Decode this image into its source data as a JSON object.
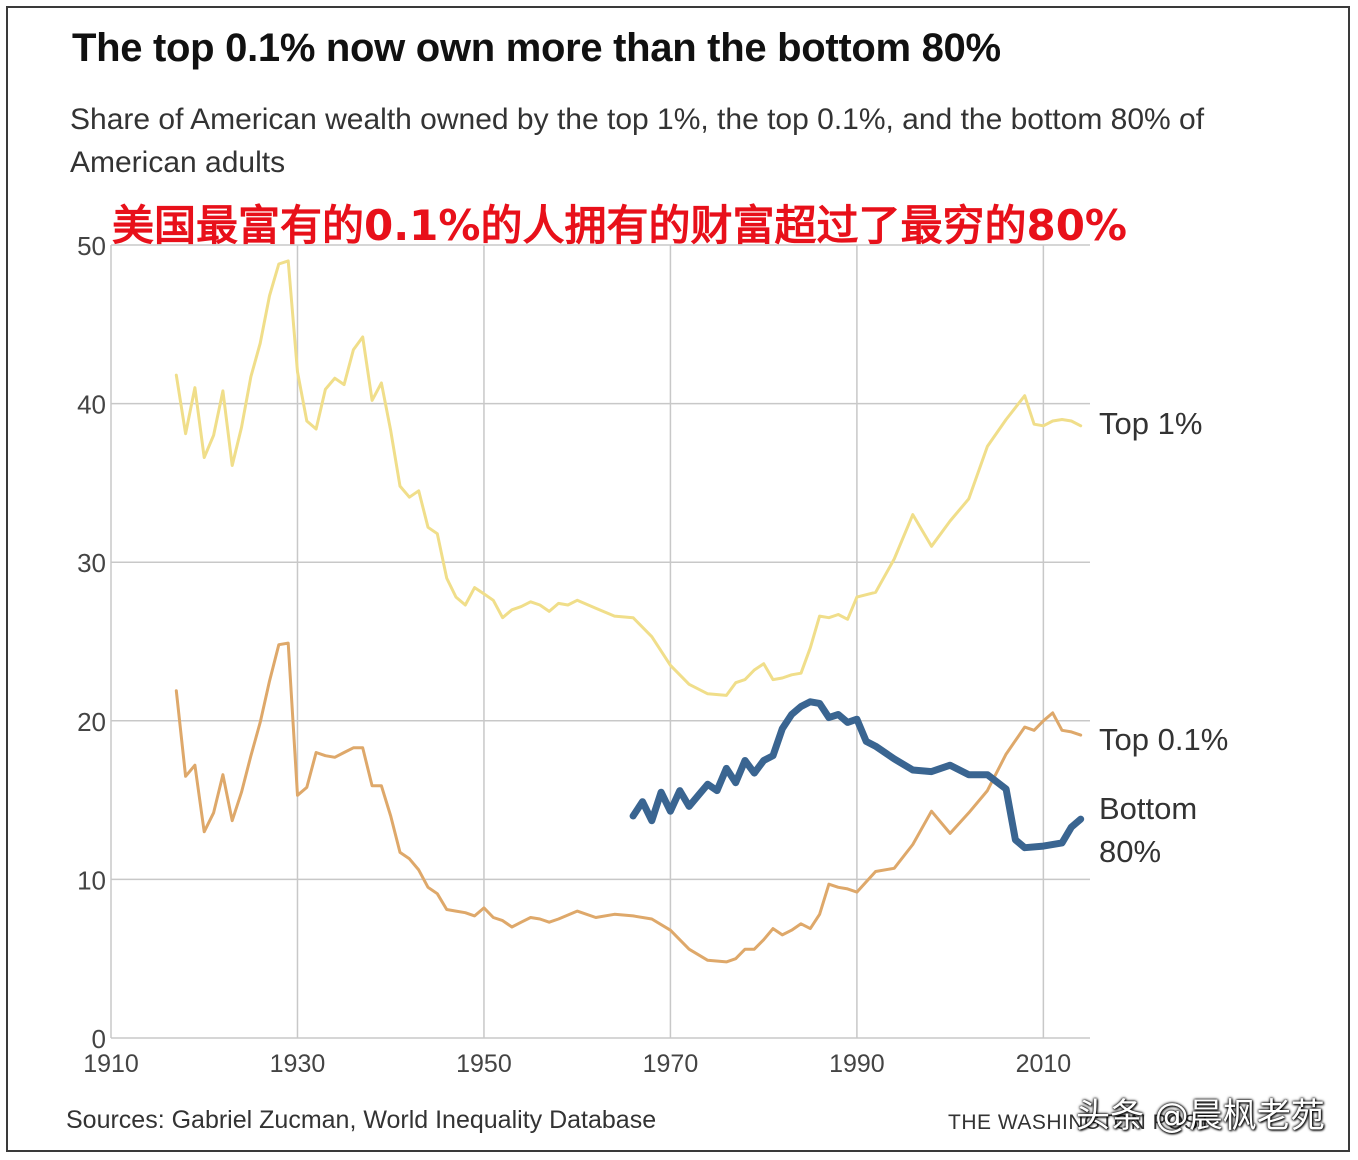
{
  "header": {
    "title": "The top 0.1% now own more than the bottom 80%",
    "subtitle": "Share of American wealth owned by the top 1%, the top 0.1%, and the bottom 80% of American adults",
    "cn_title": "美国最富有的0.1%的人拥有的财富超过了最穷的80%"
  },
  "footer": {
    "sources": "Sources: Gabriel Zucman, World Inequality Database",
    "credit": "THE WASHINGTON POST",
    "watermark": "头条 @晨枫老苑"
  },
  "colors": {
    "top1": "#f0de8a",
    "top01": "#dea86a",
    "bottom80": "#3a6591",
    "grid": "#c8c8c8",
    "axis_text": "#444444"
  },
  "chart_data": {
    "type": "line",
    "title": "The top 0.1% now own more than the bottom 80%",
    "xlabel": "",
    "ylabel": "",
    "xlim": [
      1910,
      2015
    ],
    "ylim": [
      0,
      50
    ],
    "x_ticks": [
      1910,
      1930,
      1950,
      1970,
      1990,
      2010
    ],
    "y_ticks": [
      0,
      10,
      20,
      30,
      40,
      50
    ],
    "grid": true,
    "series": [
      {
        "name": "Top 1%",
        "label": "Top 1%",
        "color_key": "top1",
        "x": [
          1917,
          1918,
          1919,
          1920,
          1921,
          1922,
          1923,
          1924,
          1925,
          1926,
          1927,
          1928,
          1929,
          1930,
          1931,
          1932,
          1933,
          1934,
          1935,
          1936,
          1937,
          1938,
          1939,
          1940,
          1941,
          1942,
          1943,
          1944,
          1945,
          1946,
          1947,
          1948,
          1949,
          1950,
          1951,
          1952,
          1953,
          1954,
          1955,
          1956,
          1957,
          1958,
          1959,
          1960,
          1962,
          1964,
          1966,
          1968,
          1970,
          1972,
          1974,
          1976,
          1977,
          1978,
          1979,
          1980,
          1981,
          1982,
          1983,
          1984,
          1985,
          1986,
          1987,
          1988,
          1989,
          1990,
          1992,
          1994,
          1996,
          1998,
          2000,
          2002,
          2004,
          2006,
          2008,
          2009,
          2010,
          2011,
          2012,
          2013,
          2014
        ],
        "values": [
          41.8,
          38.1,
          41.0,
          36.6,
          38.0,
          40.8,
          36.1,
          38.5,
          41.7,
          43.8,
          46.8,
          48.8,
          49.0,
          42.0,
          38.9,
          38.4,
          40.9,
          41.6,
          41.2,
          43.4,
          44.2,
          40.2,
          41.3,
          38.3,
          34.8,
          34.1,
          34.5,
          32.2,
          31.8,
          29.0,
          27.8,
          27.3,
          28.4,
          28.0,
          27.6,
          26.5,
          27.0,
          27.2,
          27.5,
          27.3,
          26.9,
          27.4,
          27.3,
          27.6,
          27.1,
          26.6,
          26.5,
          25.3,
          23.5,
          22.3,
          21.7,
          21.6,
          22.4,
          22.6,
          23.2,
          23.6,
          22.6,
          22.7,
          22.9,
          23.0,
          24.6,
          26.6,
          26.5,
          26.7,
          26.4,
          27.8,
          28.1,
          30.2,
          33.0,
          31.0,
          32.6,
          34.0,
          37.3,
          39.0,
          40.5,
          38.7,
          38.6,
          38.9,
          39.0,
          38.9,
          38.6
        ]
      },
      {
        "name": "Top 0.1%",
        "label": "Top 0.1%",
        "color_key": "top01",
        "x": [
          1917,
          1918,
          1919,
          1920,
          1921,
          1922,
          1923,
          1924,
          1925,
          1926,
          1927,
          1928,
          1929,
          1930,
          1931,
          1932,
          1933,
          1934,
          1935,
          1936,
          1937,
          1938,
          1939,
          1940,
          1941,
          1942,
          1943,
          1944,
          1945,
          1946,
          1947,
          1948,
          1949,
          1950,
          1951,
          1952,
          1953,
          1954,
          1955,
          1956,
          1957,
          1958,
          1960,
          1962,
          1964,
          1966,
          1968,
          1970,
          1972,
          1974,
          1976,
          1977,
          1978,
          1979,
          1980,
          1981,
          1982,
          1983,
          1984,
          1985,
          1986,
          1987,
          1988,
          1989,
          1990,
          1992,
          1994,
          1996,
          1998,
          2000,
          2002,
          2004,
          2006,
          2008,
          2009,
          2010,
          2011,
          2012,
          2013,
          2014
        ],
        "values": [
          21.9,
          16.5,
          17.2,
          13.0,
          14.2,
          16.6,
          13.7,
          15.5,
          17.8,
          19.9,
          22.5,
          24.8,
          24.9,
          15.3,
          15.8,
          18.0,
          17.8,
          17.7,
          18.0,
          18.3,
          18.3,
          15.9,
          15.9,
          14.0,
          11.7,
          11.3,
          10.6,
          9.5,
          9.1,
          8.1,
          8.0,
          7.9,
          7.7,
          8.2,
          7.6,
          7.4,
          7.0,
          7.3,
          7.6,
          7.5,
          7.3,
          7.5,
          8.0,
          7.6,
          7.8,
          7.7,
          7.5,
          6.8,
          5.6,
          4.9,
          4.8,
          5.0,
          5.6,
          5.6,
          6.2,
          6.9,
          6.5,
          6.8,
          7.2,
          6.9,
          7.8,
          9.7,
          9.5,
          9.4,
          9.2,
          10.5,
          10.7,
          12.2,
          14.3,
          12.9,
          14.2,
          15.6,
          17.9,
          19.6,
          19.4,
          20.0,
          20.5,
          19.4,
          19.3,
          19.1
        ]
      },
      {
        "name": "Bottom 80%",
        "label_line1": "Bottom",
        "label_line2": "80%",
        "color_key": "bottom80",
        "x": [
          1966,
          1967,
          1968,
          1969,
          1970,
          1971,
          1972,
          1973,
          1974,
          1975,
          1976,
          1977,
          1978,
          1979,
          1980,
          1981,
          1982,
          1983,
          1984,
          1985,
          1986,
          1987,
          1988,
          1989,
          1990,
          1991,
          1992,
          1994,
          1996,
          1998,
          2000,
          2002,
          2004,
          2006,
          2007,
          2008,
          2010,
          2012,
          2013,
          2014
        ],
        "values": [
          14.0,
          14.9,
          13.7,
          15.5,
          14.3,
          15.6,
          14.6,
          15.3,
          16.0,
          15.6,
          17.0,
          16.1,
          17.5,
          16.7,
          17.5,
          17.8,
          19.5,
          20.4,
          20.9,
          21.2,
          21.1,
          20.2,
          20.4,
          19.9,
          20.1,
          18.7,
          18.4,
          17.6,
          16.9,
          16.8,
          17.2,
          16.6,
          16.6,
          15.7,
          12.5,
          12.0,
          12.1,
          12.3,
          13.3,
          13.8
        ]
      }
    ]
  }
}
